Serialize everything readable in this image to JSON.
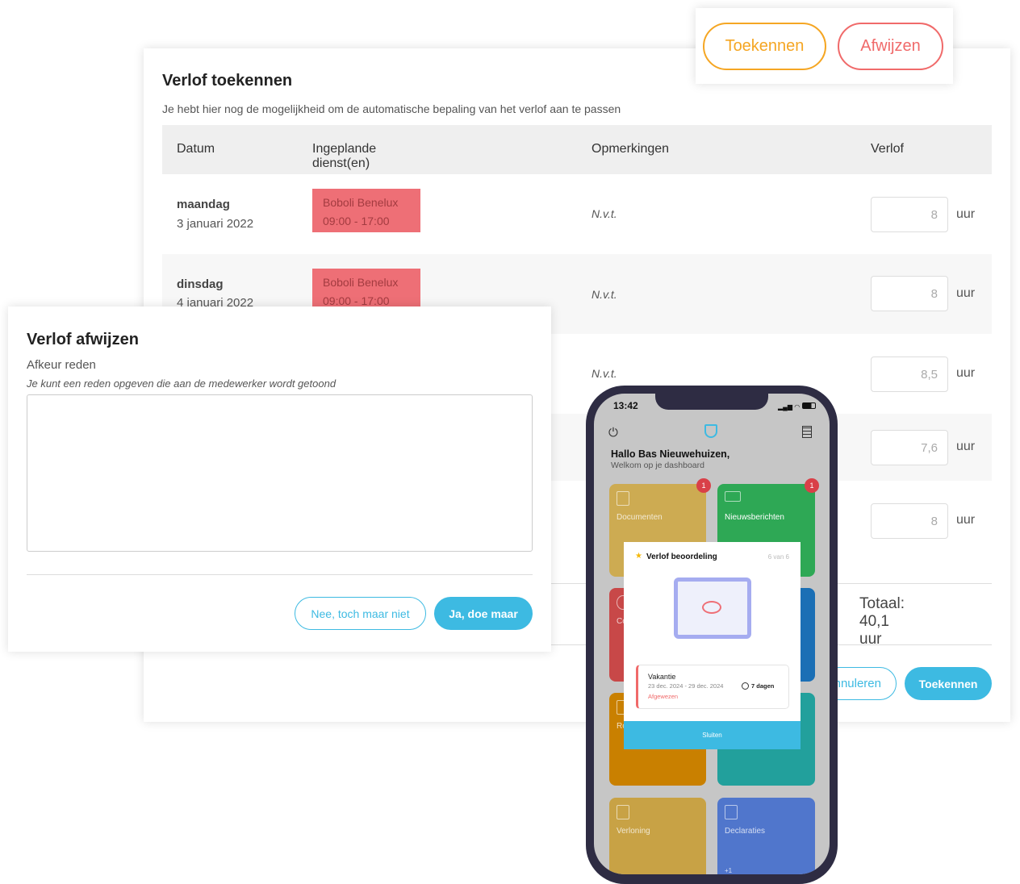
{
  "grant": {
    "title": "Verlof toekennen",
    "subtitle": "Je hebt hier nog de mogelijkheid om de automatische bepaling van het verlof aan te passen",
    "columns": [
      "Datum",
      "Ingeplande dienst(en)",
      "Opmerkingen",
      "Verlof"
    ],
    "rows": [
      {
        "day": "maandag",
        "date": "3 januari 2022",
        "shift_name": "Boboli Benelux",
        "shift_time": "09:00 - 17:00",
        "remark": "N.v.t.",
        "hours": "8",
        "unit": "uur"
      },
      {
        "day": "dinsdag",
        "date": "4 januari 2022",
        "shift_name": "Boboli Benelux",
        "shift_time": "09:00 - 17:00",
        "remark": "N.v.t.",
        "hours": "8",
        "unit": "uur"
      },
      {
        "remark": "N.v.t.",
        "hours": "8,5",
        "unit": "uur"
      },
      {
        "hours": "7,6",
        "unit": "uur"
      },
      {
        "hours": "8",
        "unit": "uur"
      }
    ],
    "total": "Totaal: 40,1 uur",
    "cancel": "nnuleren",
    "submit": "Toekennen"
  },
  "actions": {
    "grant": "Toekennen",
    "reject": "Afwijzen"
  },
  "reject": {
    "title": "Verlof afwijzen",
    "label": "Afkeur reden",
    "help": "Je kunt een reden opgeven die aan de medewerker wordt getoond",
    "textarea_value": "",
    "cancel": "Nee, toch maar niet",
    "confirm": "Ja, doe maar"
  },
  "phone": {
    "time": "13:42",
    "greeting": "Hallo Bas Nieuwehuizen,",
    "welcome": "Welkom op je dashboard",
    "tiles": [
      {
        "label": "Documenten",
        "badge": "1",
        "color": "#cdab52"
      },
      {
        "label": "Nieuwsberichten",
        "badge": "1",
        "color": "#2ea855"
      },
      {
        "label": "Co",
        "color": "#c84848"
      },
      {
        "label": "",
        "color": "#1b6fb5"
      },
      {
        "label": "Ro",
        "color": "#c98000"
      },
      {
        "label": "",
        "color": "#22a09c"
      },
      {
        "label": "Verloning",
        "color": "#c8a245"
      },
      {
        "label": "Declaraties",
        "extra": "+1",
        "color": "#5076cc"
      }
    ],
    "modal": {
      "title": "Verlof beoordeling",
      "counter": "6 van 6",
      "type": "Vakantie",
      "period": "23 dec. 2024 - 29 dec. 2024",
      "duration": "7 dagen",
      "status": "Afgewezen",
      "close": "Sluiten"
    }
  },
  "colors": {
    "accent": "#3dbae2",
    "orange": "#f5a623",
    "red": "#f06a6a",
    "shift": "#ee6f76"
  }
}
